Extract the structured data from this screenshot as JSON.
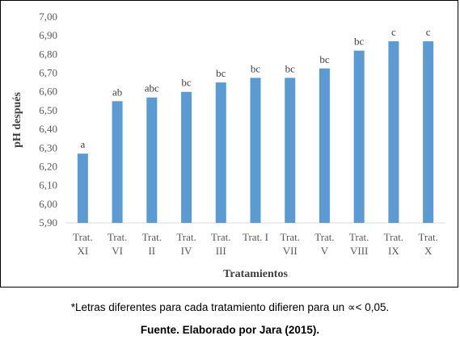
{
  "chart_data": {
    "type": "bar",
    "categories": [
      [
        "Trat.",
        "XI"
      ],
      [
        "Trat.",
        "VI"
      ],
      [
        "Trat.",
        "II"
      ],
      [
        "Trat.",
        "IV"
      ],
      [
        "Trat.",
        "III"
      ],
      [
        "Trat. I"
      ],
      [
        "Trat.",
        "VII"
      ],
      [
        "Trat.",
        "V"
      ],
      [
        "Trat.",
        "VIII"
      ],
      [
        "Trat.",
        "IX"
      ],
      [
        "Trat.",
        "X"
      ]
    ],
    "values": [
      6.27,
      6.55,
      6.57,
      6.6,
      6.65,
      6.675,
      6.675,
      6.725,
      6.82,
      6.87,
      6.87
    ],
    "data_labels": [
      "a",
      "ab",
      "abc",
      "bc",
      "bc",
      "bc",
      "bc",
      "bc",
      "bc",
      "c",
      "c"
    ],
    "xlabel": "Tratamientos",
    "ylabel": "pH después",
    "ylim": [
      5.9,
      7.0
    ],
    "yticks": [
      "5,90",
      "6,00",
      "6,10",
      "6,20",
      "6,30",
      "6,40",
      "6,50",
      "6,60",
      "6,70",
      "6,80",
      "6,90",
      "7,00"
    ],
    "bar_color": "#5b9bd5",
    "grid": false
  },
  "caption": {
    "note": "*Letras diferentes para cada tratamiento difieren para un ∝< 0,05.",
    "source": "Fuente. Elaborado por Jara (2015)."
  }
}
